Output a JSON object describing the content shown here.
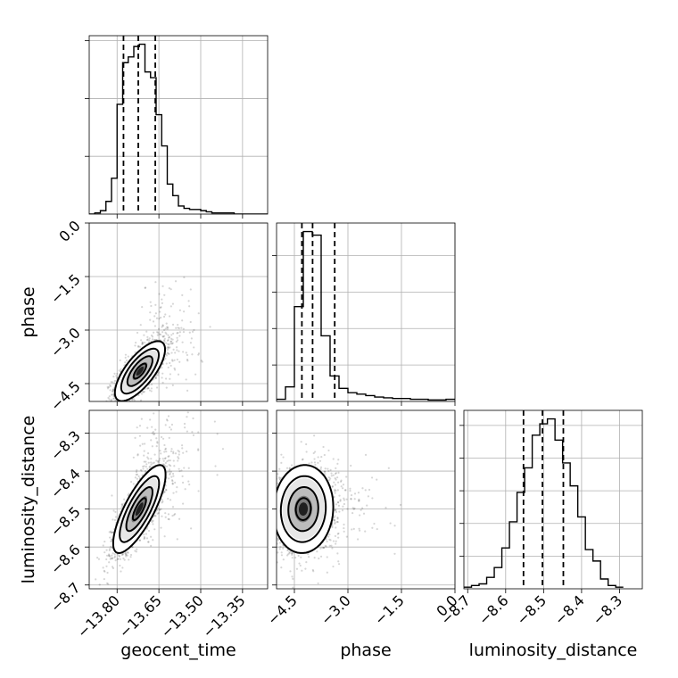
{
  "chart_data": {
    "type": "corner",
    "parameters": [
      "geocent_time",
      "phase",
      "luminosity_distance"
    ],
    "grid": true,
    "quantiles_dashed": true,
    "axes": {
      "geocent_time": {
        "label": "geocent_time",
        "range": [
          -13.9,
          -13.26
        ],
        "ticks": [
          -13.8,
          -13.65,
          -13.5,
          -13.35
        ],
        "tick_labels": [
          "−13.80",
          "−13.65",
          "−13.50",
          "−13.35"
        ]
      },
      "phase": {
        "label": "phase",
        "range": [
          -5.0,
          0.0
        ],
        "ticks": [
          -4.5,
          -3.0,
          -1.5,
          0.0
        ],
        "tick_labels": [
          "−4.5",
          "−3.0",
          "−1.5",
          "0.0"
        ]
      },
      "luminosity_distance": {
        "label": "luminosity_distance",
        "range": [
          -8.71,
          -8.24
        ],
        "ticks": [
          -8.7,
          -8.6,
          -8.5,
          -8.4,
          -8.3
        ],
        "tick_labels": [
          "−8.7",
          "−8.6",
          "−8.5",
          "−8.4",
          "−8.3"
        ]
      }
    },
    "histograms": [
      {
        "param": "geocent_time",
        "bin_edges": [
          -13.9,
          -13.88,
          -13.86,
          -13.84,
          -13.82,
          -13.8,
          -13.78,
          -13.76,
          -13.74,
          -13.72,
          -13.7,
          -13.68,
          -13.66,
          -13.64,
          -13.62,
          -13.6,
          -13.58,
          -13.56,
          -13.54,
          -13.52,
          -13.5,
          -13.48,
          -13.46,
          -13.44,
          -13.42,
          -13.4,
          -13.38,
          -13.36,
          -13.34,
          -13.32,
          -13.3,
          -13.28,
          -13.26
        ],
        "counts": [
          0,
          1,
          3,
          11,
          31,
          95,
          131,
          136,
          145,
          147,
          123,
          118,
          86,
          59,
          26,
          16,
          7,
          5,
          4,
          4,
          3,
          2,
          1,
          1,
          1,
          1,
          0,
          0,
          0,
          0,
          0,
          0
        ],
        "quantiles": [
          -13.777,
          -13.724,
          -13.663
        ]
      },
      {
        "param": "phase",
        "bin_edges": [
          -5.0,
          -4.75,
          -4.5,
          -4.25,
          -4.0,
          -3.75,
          -3.5,
          -3.25,
          -3.0,
          -2.75,
          -2.5,
          -2.25,
          -2.0,
          -1.75,
          -1.5,
          -1.25,
          -1.0,
          -0.75,
          -0.5,
          -0.25,
          0.0
        ],
        "counts": [
          3,
          20,
          130,
          233,
          228,
          90,
          35,
          18,
          12,
          10,
          8,
          6,
          5,
          4,
          4,
          3,
          3,
          2,
          2,
          3
        ],
        "quantiles": [
          -4.29,
          -3.99,
          -3.37
        ]
      },
      {
        "param": "luminosity_distance",
        "bin_edges": [
          -8.71,
          -8.69,
          -8.67,
          -8.65,
          -8.63,
          -8.61,
          -8.59,
          -8.57,
          -8.55,
          -8.53,
          -8.51,
          -8.49,
          -8.47,
          -8.45,
          -8.43,
          -8.41,
          -8.39,
          -8.37,
          -8.35,
          -8.33,
          -8.31,
          -8.29
        ],
        "counts": [
          1,
          2,
          3,
          7,
          13,
          25,
          41,
          59,
          74,
          94,
          101,
          104,
          91,
          77,
          63,
          44,
          24,
          17,
          6,
          2,
          1
        ],
        "quantiles": [
          -8.553,
          -8.503,
          -8.448
        ]
      }
    ],
    "panels_2d": [
      {
        "x": "geocent_time",
        "y": "phase",
        "mean": [
          -13.718,
          -4.15
        ],
        "sd": [
          0.045,
          0.42
        ],
        "corr": 0.72
      },
      {
        "x": "geocent_time",
        "y": "luminosity_distance",
        "mean": [
          -13.72,
          -8.5
        ],
        "sd": [
          0.047,
          0.058
        ],
        "corr": 0.78
      },
      {
        "x": "phase",
        "y": "luminosity_distance",
        "mean": [
          -4.25,
          -8.5
        ],
        "sd": [
          0.42,
          0.058
        ],
        "corr": 0.05
      }
    ]
  }
}
